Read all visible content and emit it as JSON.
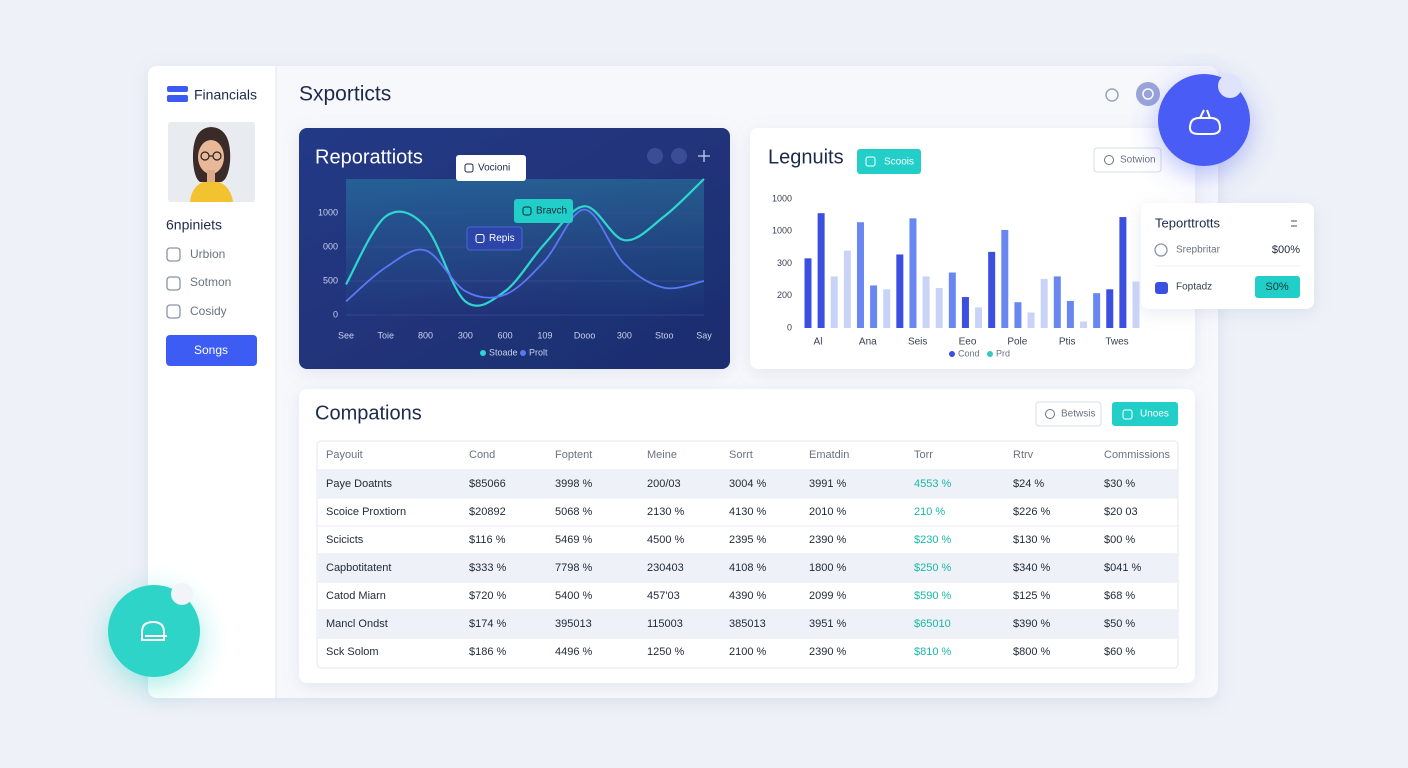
{
  "sidebar": {
    "brand": "Financials",
    "section": "6npiniets",
    "menu": [
      "Urbion",
      "Sotmon",
      "Cosidy"
    ],
    "button": "Songs"
  },
  "header": {
    "title": "Sxporticts"
  },
  "line_chart": {
    "type": "line",
    "title": "Reporattiots",
    "tooltips": [
      "Vocioni",
      "Bravch",
      "Repis"
    ],
    "categories": [
      "See",
      "Toie",
      "800",
      "300",
      "600",
      "109",
      "Dooo",
      "300",
      "Stoo",
      "Say"
    ],
    "y_labels": [
      "1000",
      "000",
      "500",
      "0"
    ],
    "ylim": [
      0,
      2000
    ],
    "series": [
      {
        "name": "Stoade",
        "color": "#2fd6d0",
        "values": [
          450,
          1450,
          1300,
          200,
          350,
          1050,
          1600,
          1100,
          1450,
          2000
        ]
      },
      {
        "name": "Prolt",
        "color": "#5a78f5",
        "values": [
          200,
          700,
          950,
          350,
          300,
          800,
          1550,
          750,
          400,
          500
        ]
      }
    ]
  },
  "bar_chart": {
    "type": "bar",
    "title": "Legnuits",
    "badge": "Scoois",
    "button": "Sotwion",
    "categories": [
      "Al",
      "Ana",
      "Seis",
      "Eeo",
      "Pole",
      "Ptis",
      "Twes"
    ],
    "y_labels": [
      "1000",
      "1000",
      "300",
      "200",
      "0"
    ],
    "ylim": [
      0,
      1000
    ],
    "values": [
      540,
      890,
      400,
      600,
      820,
      330,
      300,
      570,
      850,
      400,
      310,
      430,
      240,
      160,
      590,
      760,
      200,
      120,
      380,
      400,
      210,
      50,
      270,
      300,
      860,
      360
    ],
    "colors": [
      "#3b4fe0",
      "#3b4fe0",
      "#c9d3f7",
      "#c9d3f7",
      "#6a86f0",
      "#6a86f0",
      "#c9d3f7",
      "#3b4fe0",
      "#6a86f0",
      "#c9d3f7",
      "#c9d3f7",
      "#6a86f0",
      "#3b4fe0",
      "#c9d3f7",
      "#3b4fe0",
      "#6a86f0",
      "#6a86f0",
      "#c9d3f7",
      "#c9d3f7",
      "#6a86f0",
      "#6a86f0",
      "#c9d3f7",
      "#6a86f0",
      "#3b4fe0",
      "#3b4fe0",
      "#c9d3f7"
    ],
    "legend": [
      {
        "name": "Cond",
        "color": "#3b4fe0"
      },
      {
        "name": "Prd",
        "color": "#35c9c0"
      }
    ]
  },
  "side_card": {
    "title": "Teporttrotts",
    "rows": [
      {
        "label": "Srepbritar",
        "value": "$00%"
      },
      {
        "label": "Foptadz",
        "value": "S0%"
      }
    ]
  },
  "table": {
    "title": "Compations",
    "buttons": [
      "Betwsis",
      "Unoes"
    ],
    "columns": [
      "Payouit",
      "Cond",
      "Foptent",
      "Meine",
      "Sorrt",
      "Ematdin",
      "Torr",
      "Rtrv",
      "Commissions"
    ],
    "rows": [
      [
        "Paye Doatnts",
        "$85066",
        "3998 %",
        "200/03",
        "3004 %",
        "3991 %",
        "4553 %",
        "$24 %",
        "$30 %"
      ],
      [
        "Scoice Proxtiorn",
        "$20892",
        "5068 %",
        "2130 %",
        "4130 %",
        "2010 %",
        "210 %",
        "$226 %",
        "$20 03"
      ],
      [
        "Scicicts",
        "$116 %",
        "5469 %",
        "4500 %",
        "2395 %",
        "2390 %",
        "$230 %",
        "$130 %",
        "$00 %"
      ],
      [
        "Capbotitatent",
        "$333 %",
        "7798 %",
        "230403",
        "4108 %",
        "1800 %",
        "$250 %",
        "$340 %",
        "$041 %"
      ],
      [
        "Catod Miarn",
        "$720 %",
        "5400 %",
        "457'03",
        "4390 %",
        "2099 %",
        "$590 %",
        "$125 %",
        "$68 %"
      ],
      [
        "Mancl Ondst",
        "$174 %",
        "395013",
        "115003",
        "385013",
        "3951 %",
        "$65010",
        "$390 %",
        "$50 %"
      ],
      [
        "Sck Solom",
        "$186 %",
        "4496 %",
        "1250 %",
        "2100 %",
        "2390 %",
        "$810 %",
        "$800 %",
        "$60 %"
      ]
    ]
  }
}
